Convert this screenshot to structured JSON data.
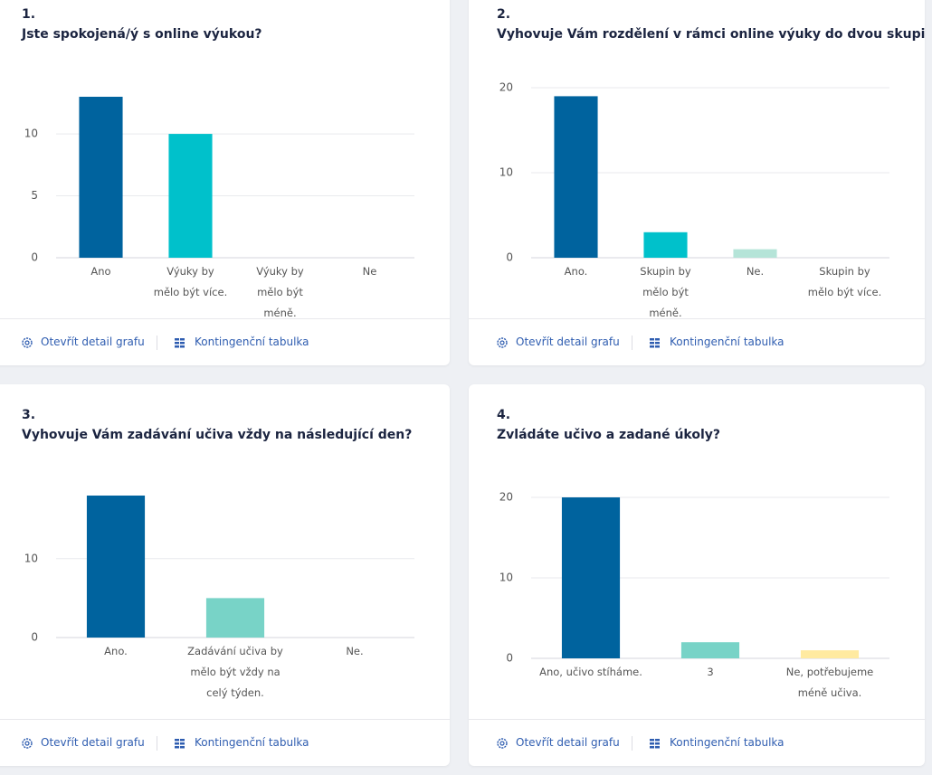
{
  "chart_data": [
    {
      "type": "bar",
      "title": "Jste spokojená/ý s online výukou?",
      "categories": [
        "Ano",
        "Výuky by mělo být více.",
        "Výuky by mělo být méně.",
        "Ne"
      ],
      "values": [
        13,
        10,
        0,
        0
      ],
      "colors": [
        "#00639e",
        "#00c1cb",
        "#78d3c7",
        "#b5e4d8"
      ],
      "ylim": [
        0,
        13
      ],
      "yticks": [
        0,
        5,
        10
      ],
      "grid": true
    },
    {
      "type": "bar",
      "title": "Vyhovuje Vám rozdělení v rámci online výuky do dvou skupin?",
      "categories": [
        "Ano.",
        "Skupin by mělo být méně.",
        "Ne.",
        "Skupin by mělo být více."
      ],
      "values": [
        19,
        3,
        1,
        0
      ],
      "colors": [
        "#00639e",
        "#00c1cb",
        "#b5e4d8",
        "#78d3c7"
      ],
      "ylim": [
        0,
        20
      ],
      "yticks": [
        0,
        10,
        20
      ],
      "grid": true
    },
    {
      "type": "bar",
      "title": "Vyhovuje Vám zadávání učiva vždy na následující den?",
      "categories": [
        "Ano.",
        "Zadávání učiva by mělo být vždy na celý týden.",
        "Ne."
      ],
      "values": [
        18,
        5,
        0
      ],
      "colors": [
        "#00639e",
        "#78d3c7",
        "#b5e4d8"
      ],
      "ylim": [
        0,
        18
      ],
      "yticks": [
        0,
        10
      ],
      "grid": true
    },
    {
      "type": "bar",
      "title": "Zvládáte učivo a zadané úkoly?",
      "categories": [
        "Ano, učivo stíháme.",
        "3",
        "Ne, potřebujeme méně učiva."
      ],
      "values": [
        20,
        2,
        1
      ],
      "colors": [
        "#00639e",
        "#78d3c7",
        "#ffeaa0"
      ],
      "ylim": [
        0,
        20
      ],
      "yticks": [
        0,
        10,
        20
      ],
      "grid": true
    }
  ],
  "cards": [
    {
      "number": "1.",
      "detail_link": "Otevřít detail grafu",
      "table_link": "Kontingenční tabulka"
    },
    {
      "number": "2.",
      "detail_link": "Otevřít detail grafu",
      "table_link": "Kontingenční tabulka"
    },
    {
      "number": "3.",
      "detail_link": "Otevřít detail grafu",
      "table_link": "Kontingenční tabulka"
    },
    {
      "number": "4.",
      "detail_link": "Otevřít detail grafu",
      "table_link": "Kontingenční tabulka"
    }
  ]
}
